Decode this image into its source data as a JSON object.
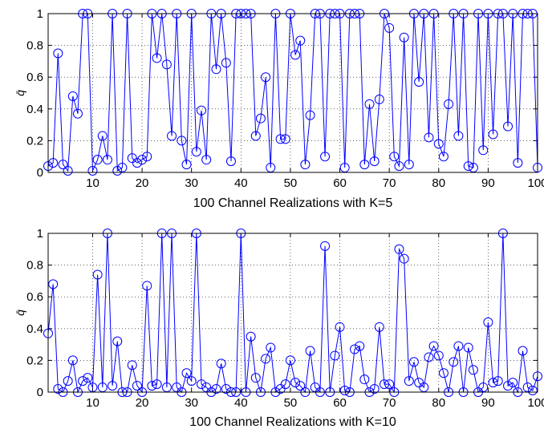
{
  "chart_data": [
    {
      "type": "line",
      "xlabel": "100 Channel Realizations with K=5",
      "ylabel": "q̄",
      "xlim": [
        1,
        100
      ],
      "ylim": [
        0,
        1
      ],
      "xticks": [
        10,
        20,
        30,
        40,
        50,
        60,
        70,
        80,
        90,
        100
      ],
      "yticks": [
        0,
        0.2,
        0.4,
        0.6,
        0.8,
        1
      ],
      "grid": true,
      "series_color": "#0000ff",
      "marker": "circle",
      "x": [
        1,
        2,
        3,
        4,
        5,
        6,
        7,
        8,
        9,
        10,
        11,
        12,
        13,
        14,
        15,
        16,
        17,
        18,
        19,
        20,
        21,
        22,
        23,
        24,
        25,
        26,
        27,
        28,
        29,
        30,
        31,
        32,
        33,
        34,
        35,
        36,
        37,
        38,
        39,
        40,
        41,
        42,
        43,
        44,
        45,
        46,
        47,
        48,
        49,
        50,
        51,
        52,
        53,
        54,
        55,
        56,
        57,
        58,
        59,
        60,
        61,
        62,
        63,
        64,
        65,
        66,
        67,
        68,
        69,
        70,
        71,
        72,
        73,
        74,
        75,
        76,
        77,
        78,
        79,
        80,
        81,
        82,
        83,
        84,
        85,
        86,
        87,
        88,
        89,
        90,
        91,
        92,
        93,
        94,
        95,
        96,
        97,
        98,
        99,
        100
      ],
      "values": [
        0.04,
        0.06,
        0.75,
        0.05,
        0.01,
        0.48,
        0.37,
        1,
        1,
        0.01,
        0.08,
        0.23,
        0.08,
        1,
        0.01,
        0.03,
        1,
        0.09,
        0.06,
        0.08,
        0.1,
        1,
        0.72,
        1,
        0.68,
        0.23,
        1,
        0.2,
        0.05,
        1,
        0.13,
        0.39,
        0.08,
        1,
        0.65,
        1,
        0.69,
        0.07,
        1,
        1,
        1,
        1,
        0.23,
        0.34,
        0.6,
        0.03,
        1,
        0.21,
        0.21,
        1,
        0.74,
        0.83,
        0.05,
        0.36,
        1,
        1,
        0.1,
        1,
        1,
        1,
        0.03,
        1,
        1,
        1,
        0.05,
        0.43,
        0.07,
        0.46,
        1,
        0.91,
        0.1,
        0.04,
        0.85,
        0.05,
        1,
        0.57,
        1,
        0.22,
        1,
        0.18,
        0.1,
        0.43,
        1,
        0.23,
        1,
        0.04,
        0.03,
        1,
        0.14,
        1,
        0.24,
        1,
        1,
        0.29,
        1,
        0.06,
        1,
        1,
        1,
        0.03
      ]
    },
    {
      "type": "line",
      "xlabel": "100 Channel Realizations with K=10",
      "ylabel": "q̄",
      "xlim": [
        1,
        100
      ],
      "ylim": [
        0,
        1
      ],
      "xticks": [
        10,
        20,
        30,
        40,
        50,
        60,
        70,
        80,
        90,
        100
      ],
      "yticks": [
        0,
        0.2,
        0.4,
        0.6,
        0.8,
        1
      ],
      "grid": true,
      "series_color": "#0000ff",
      "marker": "circle",
      "x": [
        1,
        2,
        3,
        4,
        5,
        6,
        7,
        8,
        9,
        10,
        11,
        12,
        13,
        14,
        15,
        16,
        17,
        18,
        19,
        20,
        21,
        22,
        23,
        24,
        25,
        26,
        27,
        28,
        29,
        30,
        31,
        32,
        33,
        34,
        35,
        36,
        37,
        38,
        39,
        40,
        41,
        42,
        43,
        44,
        45,
        46,
        47,
        48,
        49,
        50,
        51,
        52,
        53,
        54,
        55,
        56,
        57,
        58,
        59,
        60,
        61,
        62,
        63,
        64,
        65,
        66,
        67,
        68,
        69,
        70,
        71,
        72,
        73,
        74,
        75,
        76,
        77,
        78,
        79,
        80,
        81,
        82,
        83,
        84,
        85,
        86,
        87,
        88,
        89,
        90,
        91,
        92,
        93,
        94,
        95,
        96,
        97,
        98,
        99,
        100
      ],
      "values": [
        0.37,
        0.68,
        0.02,
        0.0,
        0.07,
        0.2,
        0.0,
        0.07,
        0.09,
        0.03,
        0.74,
        0.03,
        1,
        0.04,
        0.32,
        0.0,
        0.0,
        0.17,
        0.04,
        0.0,
        0.67,
        0.04,
        0.05,
        1,
        0.03,
        1,
        0.03,
        0.0,
        0.12,
        0.07,
        1,
        0.05,
        0.03,
        0.0,
        0.02,
        0.18,
        0.02,
        0.0,
        0.0,
        1,
        0.0,
        0.35,
        0.09,
        0.0,
        0.21,
        0.28,
        0.0,
        0.02,
        0.05,
        0.2,
        0.06,
        0.04,
        0.0,
        0.26,
        0.03,
        0.0,
        0.92,
        0.0,
        0.23,
        0.41,
        0.01,
        0.0,
        0.27,
        0.29,
        0.08,
        0.0,
        0.02,
        0.41,
        0.05,
        0.05,
        0.0,
        0.9,
        0.84,
        0.07,
        0.19,
        0.06,
        0.03,
        0.22,
        0.29,
        0.23,
        0.12,
        0.0,
        0.19,
        0.29,
        0.0,
        0.28,
        0.14,
        0.0,
        0.03,
        0.44,
        0.06,
        0.07,
        1,
        0.04,
        0.06,
        0.0,
        0.26,
        0.03,
        0.01,
        0.1
      ]
    }
  ]
}
